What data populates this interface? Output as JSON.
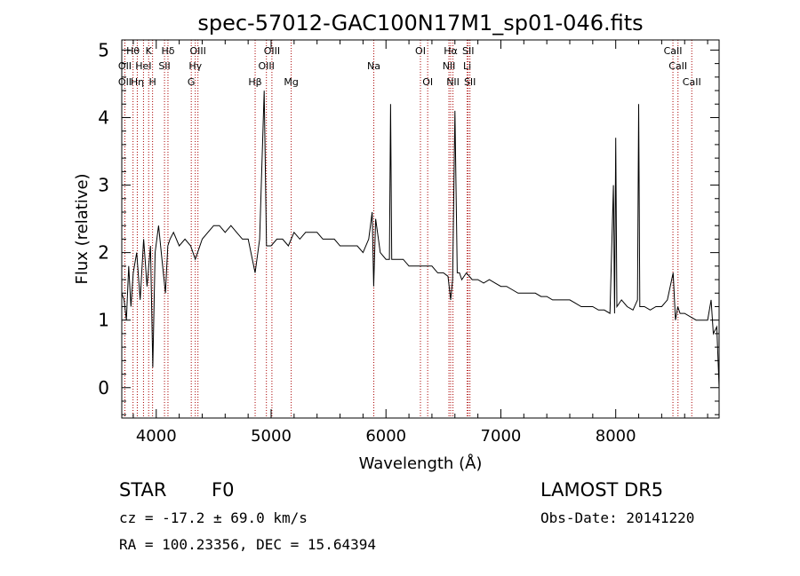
{
  "chart_data": {
    "type": "line",
    "title": "spec-57012-GAC100N17M1_sp01-046.fits",
    "xlabel": "Wavelength (Å)",
    "ylabel": "Flux (relative)",
    "xlim": [
      3700,
      8900
    ],
    "ylim": [
      -0.45,
      5.15
    ],
    "xticks": [
      4000,
      5000,
      6000,
      7000,
      8000
    ],
    "yticks": [
      0,
      1,
      2,
      3,
      4,
      5
    ],
    "grid": false,
    "spectrum": {
      "x": [
        3700,
        3720,
        3740,
        3760,
        3780,
        3800,
        3830,
        3860,
        3890,
        3920,
        3950,
        3970,
        3990,
        4020,
        4050,
        4080,
        4101,
        4120,
        4150,
        4200,
        4250,
        4300,
        4340,
        4400,
        4450,
        4500,
        4550,
        4600,
        4650,
        4700,
        4750,
        4800,
        4861,
        4900,
        4940,
        4960,
        5000,
        5050,
        5100,
        5150,
        5200,
        5250,
        5300,
        5350,
        5400,
        5450,
        5500,
        5550,
        5600,
        5650,
        5700,
        5750,
        5800,
        5850,
        5880,
        5893,
        5910,
        5950,
        6000,
        6030,
        6040,
        6050,
        6100,
        6150,
        6200,
        6250,
        6300,
        6350,
        6400,
        6450,
        6500,
        6540,
        6563,
        6580,
        6600,
        6620,
        6640,
        6660,
        6700,
        6750,
        6800,
        6850,
        6900,
        6950,
        7000,
        7050,
        7100,
        7150,
        7200,
        7250,
        7300,
        7350,
        7400,
        7450,
        7500,
        7550,
        7600,
        7650,
        7700,
        7750,
        7800,
        7850,
        7900,
        7950,
        7980,
        7990,
        8000,
        8010,
        8050,
        8100,
        8150,
        8190,
        8200,
        8210,
        8250,
        8300,
        8350,
        8400,
        8450,
        8500,
        8520,
        8540,
        8560,
        8600,
        8650,
        8700,
        8750,
        8800,
        8830,
        8850,
        8880,
        8900
      ],
      "y": [
        1.4,
        1.3,
        1.0,
        1.8,
        1.2,
        1.7,
        2.0,
        1.3,
        2.2,
        1.5,
        2.1,
        0.3,
        2.0,
        2.4,
        1.9,
        1.4,
        2.1,
        2.2,
        2.3,
        2.1,
        2.2,
        2.1,
        1.9,
        2.2,
        2.3,
        2.4,
        2.4,
        2.3,
        2.4,
        2.3,
        2.2,
        2.2,
        1.7,
        2.2,
        4.4,
        2.1,
        2.1,
        2.2,
        2.2,
        2.1,
        2.3,
        2.2,
        2.3,
        2.3,
        2.3,
        2.2,
        2.2,
        2.2,
        2.1,
        2.1,
        2.1,
        2.1,
        2.0,
        2.2,
        2.6,
        1.5,
        2.5,
        2.0,
        1.9,
        1.9,
        4.2,
        1.9,
        1.9,
        1.9,
        1.8,
        1.8,
        1.8,
        1.8,
        1.8,
        1.7,
        1.7,
        1.65,
        1.3,
        1.6,
        4.1,
        1.7,
        1.7,
        1.6,
        1.7,
        1.6,
        1.6,
        1.55,
        1.6,
        1.55,
        1.5,
        1.5,
        1.45,
        1.4,
        1.4,
        1.4,
        1.4,
        1.35,
        1.35,
        1.3,
        1.3,
        1.3,
        1.3,
        1.25,
        1.2,
        1.2,
        1.2,
        1.15,
        1.15,
        1.1,
        3.0,
        1.1,
        3.7,
        1.2,
        1.3,
        1.2,
        1.15,
        1.3,
        4.2,
        1.2,
        1.2,
        1.15,
        1.2,
        1.2,
        1.3,
        1.7,
        1.0,
        1.2,
        1.1,
        1.1,
        1.05,
        1.0,
        1.0,
        1.0,
        1.3,
        0.8,
        0.9,
        0.0
      ]
    },
    "lines": [
      {
        "label": "OII",
        "x": 3727,
        "row": 2
      },
      {
        "label": "OII",
        "x": 3727,
        "row": 3
      },
      {
        "label": "Hθ",
        "x": 3798,
        "row": 1
      },
      {
        "label": "Hη",
        "x": 3835,
        "row": 3
      },
      {
        "label": "HeI",
        "x": 3889,
        "row": 2
      },
      {
        "label": "K",
        "x": 3934,
        "row": 1
      },
      {
        "label": "H",
        "x": 3968,
        "row": 3
      },
      {
        "label": "SII",
        "x": 4072,
        "row": 2
      },
      {
        "label": "Hδ",
        "x": 4102,
        "row": 1
      },
      {
        "label": "G",
        "x": 4305,
        "row": 3
      },
      {
        "label": "Hγ",
        "x": 4340,
        "row": 2
      },
      {
        "label": "OIII",
        "x": 4363,
        "row": 1
      },
      {
        "label": "Hβ",
        "x": 4861,
        "row": 3
      },
      {
        "label": "OIII",
        "x": 4959,
        "row": 2
      },
      {
        "label": "OIII",
        "x": 5007,
        "row": 1
      },
      {
        "label": "Mg",
        "x": 5175,
        "row": 3
      },
      {
        "label": "Na",
        "x": 5894,
        "row": 2
      },
      {
        "label": "OI",
        "x": 6300,
        "row": 1
      },
      {
        "label": "OI",
        "x": 6363,
        "row": 3
      },
      {
        "label": "NII",
        "x": 6548,
        "row": 2
      },
      {
        "label": "Hα",
        "x": 6563,
        "row": 1
      },
      {
        "label": "NII",
        "x": 6583,
        "row": 3
      },
      {
        "label": "Li",
        "x": 6707,
        "row": 2
      },
      {
        "label": "SII",
        "x": 6716,
        "row": 1
      },
      {
        "label": "SII",
        "x": 6731,
        "row": 3
      },
      {
        "label": "CaII",
        "x": 8498,
        "row": 1
      },
      {
        "label": "CaII",
        "x": 8542,
        "row": 2
      },
      {
        "label": "CaII",
        "x": 8662,
        "row": 3
      }
    ]
  },
  "info": {
    "class": "STAR",
    "subclass": "F0",
    "survey": "LAMOST DR5",
    "cz": "cz = -17.2 ± 69.0 km/s",
    "obs_date": "Obs-Date: 20141220",
    "coords": "RA = 100.23356, DEC =  15.64394"
  },
  "colors": {
    "spectrum": "#000000",
    "line_marker": "#aa0000",
    "axes": "#000000"
  }
}
